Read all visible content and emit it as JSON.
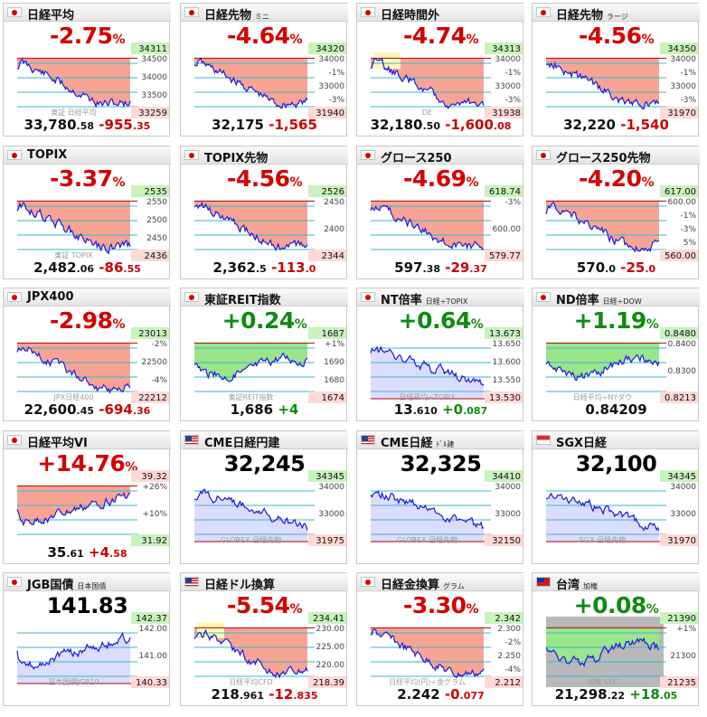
{
  "tiles": [
    {
      "name": "nikkei-225",
      "flag": "jp",
      "title": "日経平均",
      "sub": "",
      "change": "-2.75",
      "unit": "%",
      "dir": "neg",
      "chart": {
        "fill": "red",
        "scale": [
          34500,
          34000,
          33500
        ],
        "labels": [
          {
            "t": "34311",
            "c": "g"
          },
          {
            "t": "33259",
            "c": "r"
          }
        ],
        "wm": "東証 日経平均",
        "lo": 0.2,
        "hi": 0.9
      },
      "price_int": "33,780",
      "price_dec": ".58",
      "fchg_int": "-955",
      "fchg_dec": ".35",
      "fdir": "neg"
    },
    {
      "name": "nikkei-futures-mini",
      "flag": "jp",
      "title": "日経先物",
      "sub": "ミニ",
      "change": "-4.64",
      "unit": "%",
      "dir": "neg",
      "chart": {
        "fill": "red",
        "scale": [
          34000,
          "-1%",
          33000,
          "-3%"
        ],
        "labels": [
          {
            "t": "34320",
            "c": "g"
          },
          {
            "t": "31940",
            "c": "r"
          }
        ],
        "wm": "",
        "lo": 0.1,
        "hi": 0.95
      },
      "price_int": "32,175",
      "price_dec": "",
      "fchg_int": "-1,565",
      "fchg_dec": "",
      "fdir": "neg"
    },
    {
      "name": "nikkei-after-hours",
      "flag": "jp",
      "title": "日経時間外",
      "sub": "",
      "change": "-4.74",
      "unit": "%",
      "dir": "neg",
      "chart": {
        "fill": "red",
        "scale": [
          34000,
          "-1%",
          33000,
          "-3%"
        ],
        "labels": [
          {
            "t": "34313",
            "c": "g"
          },
          {
            "t": "31938",
            "c": "r"
          }
        ],
        "wm": "DE",
        "lo": 0.1,
        "hi": 0.95,
        "box": true
      },
      "price_int": "32,180",
      "price_dec": ".50",
      "fchg_int": "-1,600",
      "fchg_dec": ".08",
      "fdir": "neg"
    },
    {
      "name": "nikkei-futures-large",
      "flag": "jp",
      "title": "日経先物",
      "sub": "ラージ",
      "change": "-4.56",
      "unit": "%",
      "dir": "neg",
      "chart": {
        "fill": "red",
        "scale": [
          34000,
          "-1%",
          33000,
          "-3%"
        ],
        "labels": [
          {
            "t": "34350",
            "c": "g"
          },
          {
            "t": "31970",
            "c": "r"
          }
        ],
        "wm": "",
        "lo": 0.1,
        "hi": 0.95
      },
      "price_int": "32,220",
      "price_dec": "",
      "fchg_int": "-1,540",
      "fchg_dec": "",
      "fdir": "neg"
    },
    {
      "name": "topix",
      "flag": "jp",
      "title": "TOPIX",
      "sub": "",
      "change": "-3.37",
      "unit": "%",
      "dir": "neg",
      "chart": {
        "fill": "red",
        "scale": [
          2550,
          2500,
          2450
        ],
        "labels": [
          {
            "t": "2535",
            "c": "g"
          },
          {
            "t": "2436",
            "c": "r"
          }
        ],
        "wm": "東証 TOPIX",
        "lo": 0.15,
        "hi": 0.9
      },
      "price_int": "2,482",
      "price_dec": ".06",
      "fchg_int": "-86",
      "fchg_dec": ".55",
      "fdir": "neg"
    },
    {
      "name": "topix-futures",
      "flag": "jp",
      "title": "TOPIX先物",
      "sub": "",
      "change": "-4.56",
      "unit": "%",
      "dir": "neg",
      "chart": {
        "fill": "red",
        "scale": [
          2450,
          2400
        ],
        "labels": [
          {
            "t": "2526",
            "c": "g"
          },
          {
            "t": "2344",
            "c": "r"
          }
        ],
        "wm": "",
        "lo": 0.1,
        "hi": 0.95
      },
      "price_int": "2,362",
      "price_dec": ".5",
      "fchg_int": "-113",
      "fchg_dec": ".0",
      "fdir": "neg"
    },
    {
      "name": "growth-250",
      "flag": "jp",
      "title": "グロース250",
      "sub": "",
      "change": "-4.69",
      "unit": "%",
      "dir": "neg",
      "chart": {
        "fill": "red",
        "scale": [
          "-3%",
          "600.00"
        ],
        "labels": [
          {
            "t": "618.74",
            "c": "g"
          },
          {
            "t": "579.77",
            "c": "r"
          }
        ],
        "wm": "",
        "lo": 0.1,
        "hi": 0.95
      },
      "price_int": "597",
      "price_dec": ".38",
      "fchg_int": "-29",
      "fchg_dec": ".37",
      "fdir": "neg"
    },
    {
      "name": "growth-250-futures",
      "flag": "jp",
      "title": "グロース250先物",
      "sub": "",
      "change": "-4.20",
      "unit": "%",
      "dir": "neg",
      "chart": {
        "fill": "red",
        "scale": [
          "600.00",
          "-1%",
          "-3%",
          "5%"
        ],
        "labels": [
          {
            "t": "617.00",
            "c": "g"
          },
          {
            "t": "560.00",
            "c": "r"
          }
        ],
        "wm": "",
        "lo": 0.1,
        "hi": 0.9
      },
      "price_int": "570",
      "price_dec": ".0",
      "fchg_int": "-25",
      "fchg_dec": ".0",
      "fdir": "neg"
    },
    {
      "name": "jpx-400",
      "flag": "jp",
      "title": "JPX400",
      "sub": "",
      "change": "-2.98",
      "unit": "%",
      "dir": "neg",
      "chart": {
        "fill": "red",
        "scale": [
          "-2%",
          22500,
          "-4%"
        ],
        "labels": [
          {
            "t": "23013",
            "c": "g"
          },
          {
            "t": "22212",
            "c": "r"
          }
        ],
        "wm": "JPX日経400",
        "lo": 0.15,
        "hi": 0.9
      },
      "price_int": "22,600",
      "price_dec": ".45",
      "fchg_int": "-694",
      "fchg_dec": ".36",
      "fdir": "neg"
    },
    {
      "name": "tse-reit",
      "flag": "jp",
      "title": "東証REIT指数",
      "sub": "",
      "change": "+0.24",
      "unit": "%",
      "dir": "pos",
      "chart": {
        "fill": "mixed",
        "scale": [
          "+1%",
          1690,
          1680
        ],
        "labels": [
          {
            "t": "1687",
            "c": "g"
          },
          {
            "t": "1674",
            "c": "r"
          }
        ],
        "wm": "東証REIT指数",
        "lo": 0.3,
        "hi": 0.7
      },
      "price_int": "1,686",
      "price_dec": "",
      "fchg_int": "+4",
      "fchg_dec": "",
      "fdir": "pos"
    },
    {
      "name": "nt-ratio",
      "flag": "jp",
      "title": "NT倍率",
      "sub": "日経÷TOPIX",
      "change": "+0.64",
      "unit": "%",
      "dir": "pos",
      "chart": {
        "fill": "blue",
        "scale": [
          "13.650",
          "13.600",
          "13.550"
        ],
        "labels": [
          {
            "t": "13.673",
            "c": "g"
          },
          {
            "t": "13.530",
            "c": "r"
          }
        ],
        "wm": "日経平均÷TOPIX",
        "lo": 0.15,
        "hi": 0.95
      },
      "price_int": "13",
      "price_dec": ".610",
      "fchg_int": "+0",
      "fchg_dec": ".087",
      "fdir": "pos"
    },
    {
      "name": "nd-ratio",
      "flag": "jp",
      "title": "ND倍率",
      "sub": "日経÷DOW",
      "change": "+1.19",
      "unit": "%",
      "dir": "pos",
      "chart": {
        "fill": "mixed",
        "scale": [
          "0.8400",
          "0.8300"
        ],
        "labels": [
          {
            "t": "0.8480",
            "c": "g"
          },
          {
            "t": "0.8213",
            "c": "r"
          }
        ],
        "wm": "日経平均÷NYダウ",
        "lo": 0.1,
        "hi": 0.9
      },
      "price_int": "0.84209",
      "price_dec": "",
      "fchg_int": "",
      "fchg_dec": "",
      "fdir": "pos"
    },
    {
      "name": "nikkei-vi",
      "flag": "jp",
      "title": "日経平均VI",
      "sub": "",
      "change": "+14.76",
      "unit": "%",
      "dir": "pos",
      "chart": {
        "fill": "red",
        "scale": [
          "+26%",
          "+10%"
        ],
        "labels": [
          {
            "t": "39.32",
            "c": "r"
          },
          {
            "t": "31.92",
            "c": "g"
          }
        ],
        "wm": "",
        "lo": 0.05,
        "hi": 0.7,
        "up": true
      },
      "price_int": "35",
      "price_dec": ".61",
      "fchg_int": "+4",
      "fchg_dec": ".58",
      "fdir": "neg",
      "chg_red": true
    },
    {
      "name": "cme-nikkei-yen",
      "flag": "us",
      "title": "CME日経円建",
      "sub": "",
      "change": "32,245",
      "unit": "",
      "dir": "big",
      "chart": {
        "fill": "blue",
        "scale": [
          34000,
          33000
        ],
        "labels": [
          {
            "t": "34345",
            "c": "g"
          },
          {
            "t": "31975",
            "c": "r"
          }
        ],
        "wm": "GLOBEX 日経先物",
        "lo": 0.05,
        "hi": 0.9
      },
      "price_int": "",
      "price_dec": "",
      "fchg_int": "",
      "fchg_dec": "",
      "fdir": "neg"
    },
    {
      "name": "cme-nikkei-dollar",
      "flag": "us",
      "title": "CME日経",
      "sub": "ﾄﾞﾙ建",
      "change": "32,325",
      "unit": "",
      "dir": "big",
      "chart": {
        "fill": "blue",
        "scale": [
          34000,
          33000
        ],
        "labels": [
          {
            "t": "34410",
            "c": "g"
          },
          {
            "t": "32150",
            "c": "r"
          }
        ],
        "wm": "GLOBEX 日経先物",
        "lo": 0.05,
        "hi": 0.9
      },
      "price_int": "",
      "price_dec": "",
      "fchg_int": "",
      "fchg_dec": "",
      "fdir": "neg"
    },
    {
      "name": "sgx-nikkei",
      "flag": "sg",
      "title": "SGX日経",
      "sub": "",
      "change": "32,100",
      "unit": "",
      "dir": "big",
      "chart": {
        "fill": "blue",
        "scale": [
          34000,
          33000
        ],
        "labels": [
          {
            "t": "34345",
            "c": "g"
          },
          {
            "t": "31970",
            "c": "r"
          }
        ],
        "wm": "SGX 日経先物",
        "lo": 0.05,
        "hi": 0.9
      },
      "price_int": "",
      "price_dec": "",
      "fchg_int": "",
      "fchg_dec": "",
      "fdir": "neg"
    },
    {
      "name": "jgb-futures",
      "flag": "jp",
      "title": "JGB国債",
      "sub": "日本国債",
      "change": "141.83",
      "unit": "",
      "dir": "big",
      "chart": {
        "fill": "blue",
        "scale": [
          "142.00",
          "141.00"
        ],
        "labels": [
          {
            "t": "142.37",
            "c": "g"
          },
          {
            "t": "140.33",
            "c": "r"
          }
        ],
        "wm": "日本国債JGB10",
        "lo": 0.1,
        "hi": 0.9,
        "up": true
      },
      "price_int": "",
      "price_dec": "",
      "fchg_int": "",
      "fchg_dec": "",
      "fdir": "neg"
    },
    {
      "name": "nikkei-dollar-conv",
      "flag": "us",
      "title": "日経ドル換算",
      "sub": "",
      "change": "-5.54",
      "unit": "%",
      "dir": "neg",
      "chart": {
        "fill": "red",
        "scale": [
          "230.00",
          "225.00",
          "220.00"
        ],
        "labels": [
          {
            "t": "234.41",
            "c": "g"
          },
          {
            "t": "218.39",
            "c": "r"
          }
        ],
        "wm": "日経平均CFD",
        "lo": 0.05,
        "hi": 0.95,
        "box": true
      },
      "price_int": "218",
      "price_dec": ".961",
      "fchg_int": "-12",
      "fchg_dec": ".835",
      "fdir": "neg"
    },
    {
      "name": "nikkei-gold-conv",
      "flag": "jp",
      "title": "日経金換算",
      "sub": "グラム",
      "change": "-3.30",
      "unit": "%",
      "dir": "neg",
      "chart": {
        "fill": "red",
        "scale": [
          "2.300",
          "-2%",
          "2.250",
          "-4%"
        ],
        "labels": [
          {
            "t": "2.342",
            "c": "g"
          },
          {
            "t": "2.212",
            "c": "r"
          }
        ],
        "wm": "日経平均(円)÷金グラム",
        "lo": 0.1,
        "hi": 0.9
      },
      "price_int": "2.242",
      "price_dec": "",
      "fchg_int": "-0",
      "fchg_dec": ".077",
      "fdir": "neg"
    },
    {
      "name": "taiwan",
      "flag": "tw",
      "title": "台湾",
      "sub": "加権",
      "change": "+0.08",
      "unit": "%",
      "dir": "pos",
      "chart": {
        "fill": "gray",
        "scale": [
          "+1%",
          21300
        ],
        "labels": [
          {
            "t": "21390",
            "c": "g"
          },
          {
            "t": "21235",
            "c": "r"
          }
        ],
        "wm": "加権 SEC",
        "lo": 0.4,
        "hi": 0.75
      },
      "price_int": "21,298",
      "price_dec": ".22",
      "fchg_int": "+18",
      "fchg_dec": ".05",
      "fdir": "pos"
    }
  ],
  "colors": {
    "neg": "#d50000",
    "pos": "#118a11",
    "line": "#1a1adc",
    "redfill": "#f7a495",
    "greenfill": "#9be58a",
    "bluefill": "#dcdcff"
  }
}
